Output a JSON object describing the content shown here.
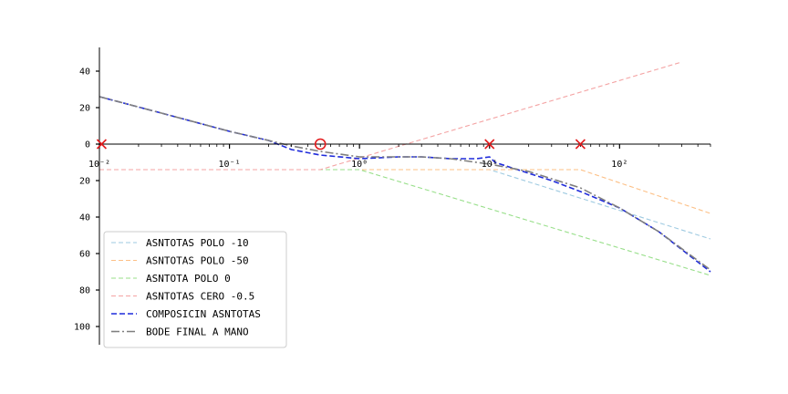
{
  "chart_data": {
    "type": "line",
    "xscale": "log",
    "xlim": [
      0.01,
      500
    ],
    "ylim": [
      -110,
      53
    ],
    "grid": false,
    "legend_position": "lower-left",
    "x_ticks": [
      {
        "value": 0.01,
        "label": "10⁻²"
      },
      {
        "value": 0.1,
        "label": "10⁻¹"
      },
      {
        "value": 1,
        "label": "10⁰"
      },
      {
        "value": 10,
        "label": "10¹"
      },
      {
        "value": 100,
        "label": "10²"
      }
    ],
    "y_ticks": [
      {
        "value": 40,
        "label": "40"
      },
      {
        "value": 20,
        "label": "20"
      },
      {
        "value": 0,
        "label": "0"
      },
      {
        "value": -20,
        "label": "20"
      },
      {
        "value": -40,
        "label": "40"
      },
      {
        "value": -60,
        "label": "60"
      },
      {
        "value": -80,
        "label": "80"
      },
      {
        "value": -100,
        "label": "100"
      }
    ],
    "series": [
      {
        "name": "ASNTOTAS POLO -10",
        "color": "#9ecae1",
        "style": "dashed",
        "x": [
          0.01,
          10,
          500
        ],
        "y": [
          -14,
          -14,
          -52
        ]
      },
      {
        "name": "ASNTOTAS POLO -50",
        "color": "#fdc086",
        "style": "dashed",
        "x": [
          0.01,
          50,
          500
        ],
        "y": [
          -14,
          -14,
          -38
        ]
      },
      {
        "name": "ASNTOTA POLO 0",
        "color": "#98df8a",
        "style": "dashed",
        "x": [
          0.01,
          1,
          500
        ],
        "y": [
          -14,
          -14,
          -72
        ]
      },
      {
        "name": "ASNTOTAS CERO   -0.5",
        "color": "#f4a3a3",
        "style": "dashed",
        "x": [
          0.01,
          0.5,
          300
        ],
        "y": [
          -14,
          -14,
          45
        ]
      },
      {
        "name": "COMPOSICIN ASNTOTAS",
        "color": "#1f2bdb",
        "style": "dashed",
        "x": [
          0.01,
          0.03,
          0.1,
          0.2,
          0.3,
          0.5,
          1,
          2,
          3,
          5,
          8,
          10,
          11,
          20,
          30,
          50,
          100,
          200,
          500
        ],
        "y": [
          26,
          17,
          7,
          2,
          -3,
          -6,
          -8,
          -7,
          -7,
          -8,
          -8,
          -7,
          -10,
          -16,
          -20,
          -26,
          -35,
          -48,
          -70
        ]
      },
      {
        "name": "BODE FINAL A MANO",
        "color": "#7f7f7f",
        "style": "dashdot",
        "x": [
          0.01,
          0.03,
          0.1,
          0.2,
          0.3,
          0.5,
          1,
          2,
          3,
          5,
          10,
          20,
          30,
          50,
          100,
          200,
          500
        ],
        "y": [
          26,
          17,
          7,
          2,
          -1,
          -4,
          -7,
          -7,
          -7,
          -8,
          -11,
          -15,
          -19,
          -24,
          -35,
          -48,
          -69
        ]
      }
    ],
    "markers": [
      {
        "kind": "x",
        "x": 0.0104,
        "y": 0,
        "color": "#e31a1c"
      },
      {
        "kind": "circle",
        "x": 0.5,
        "y": 0,
        "color": "#e31a1c"
      },
      {
        "kind": "x",
        "x": 10,
        "y": 0,
        "color": "#e31a1c"
      },
      {
        "kind": "x",
        "x": 50,
        "y": 0,
        "color": "#e31a1c"
      }
    ]
  }
}
